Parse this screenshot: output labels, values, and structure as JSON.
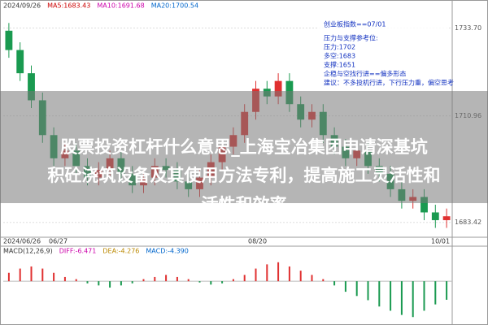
{
  "chart_data": [
    {
      "type": "candlestick",
      "header": [
        "2024/09/26",
        "MA5:1683.43",
        "MA10:1691.68",
        "MA20:1700.54"
      ],
      "ylim": [
        1680,
        1738
      ],
      "yticks": [
        {
          "value": 1733.7,
          "label": "1733.70"
        },
        {
          "value": 1710.96,
          "label": "1710.96"
        },
        {
          "value": 1683.42,
          "label": "1683.42"
        }
      ],
      "x_labels": [
        "2024/06/26",
        "06/27",
        "08/20",
        "10/01"
      ],
      "up_color": "#e03030",
      "down_color": "#1a9a50",
      "open": [
        1733,
        1728,
        1722,
        1715,
        1706,
        1700,
        1702,
        1698,
        1695,
        1697,
        1700,
        1696,
        1693,
        1695,
        1698,
        1697,
        1694,
        1692,
        1695,
        1699,
        1703,
        1706,
        1712,
        1718,
        1716,
        1720,
        1714,
        1710,
        1712,
        1706,
        1703,
        1700,
        1702,
        1698,
        1696,
        1692,
        1689,
        1690,
        1686,
        1684
      ],
      "high": [
        1735,
        1730,
        1724,
        1717,
        1708,
        1704,
        1704,
        1700,
        1699,
        1702,
        1702,
        1698,
        1697,
        1700,
        1700,
        1699,
        1696,
        1697,
        1701,
        1705,
        1708,
        1714,
        1720,
        1720,
        1722,
        1722,
        1716,
        1714,
        1714,
        1708,
        1705,
        1704,
        1704,
        1700,
        1698,
        1694,
        1692,
        1692,
        1688,
        1687
      ],
      "low": [
        1726,
        1720,
        1713,
        1704,
        1698,
        1698,
        1696,
        1693,
        1693,
        1695,
        1694,
        1691,
        1691,
        1693,
        1695,
        1692,
        1690,
        1690,
        1693,
        1697,
        1701,
        1704,
        1710,
        1714,
        1714,
        1712,
        1708,
        1708,
        1704,
        1701,
        1698,
        1698,
        1696,
        1694,
        1690,
        1687,
        1687,
        1684,
        1682,
        1682
      ],
      "close": [
        1728,
        1722,
        1715,
        1706,
        1700,
        1702,
        1698,
        1695,
        1697,
        1700,
        1696,
        1693,
        1695,
        1698,
        1697,
        1694,
        1692,
        1695,
        1699,
        1703,
        1706,
        1712,
        1718,
        1716,
        1720,
        1714,
        1710,
        1712,
        1706,
        1703,
        1700,
        1702,
        1698,
        1696,
        1692,
        1689,
        1690,
        1686,
        1684,
        1685
      ],
      "annotations": [
        "创业板指数==07/01",
        "压力与支撑参考位:",
        "压力:1702",
        "多空:1683",
        "支撑:1651",
        "企稳与空找行进==偏多形态",
        "建议：不多投机行进，下行压力重，偏空思考"
      ]
    },
    {
      "type": "bar",
      "header": [
        "MACD(12,26,9)",
        "DIFF:-6.471",
        "DEA:-4.276",
        "MACD:-4.390"
      ],
      "ylim": [
        -10,
        6
      ],
      "values": [
        2,
        3,
        3.5,
        3,
        2,
        1,
        0.5,
        -0.5,
        -1,
        -1.5,
        -1,
        -0.5,
        0.5,
        1,
        1.5,
        1,
        0.5,
        -0.3,
        -0.8,
        -0.5,
        0.5,
        1.5,
        3,
        4,
        4.5,
        3.5,
        2.5,
        1.5,
        0.5,
        -1,
        -2.5,
        -3.5,
        -4.5,
        -6,
        -7,
        -8,
        -8.5,
        -7,
        -5.5,
        -4.4
      ]
    }
  ],
  "overlay_title": [
    "股票投资杠杆什么意思_上海宝冶集团申请深基坑",
    "积砼浇筑设备及其使用方法专利，提高施工灵活性和",
    "活性和效率"
  ]
}
